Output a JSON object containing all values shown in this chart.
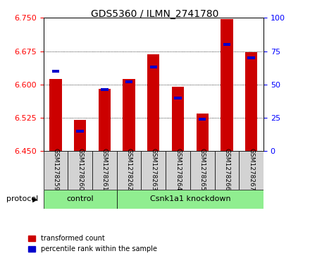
{
  "title": "GDS5360 / ILMN_2741780",
  "samples": [
    "GSM1278259",
    "GSM1278260",
    "GSM1278261",
    "GSM1278262",
    "GSM1278263",
    "GSM1278264",
    "GSM1278265",
    "GSM1278266",
    "GSM1278267"
  ],
  "transformed_count": [
    6.613,
    6.52,
    6.59,
    6.613,
    6.668,
    6.595,
    6.535,
    6.748,
    6.672
  ],
  "percentile_rank": [
    60,
    15,
    46,
    52,
    63,
    40,
    24,
    80,
    70
  ],
  "ylim_left": [
    6.45,
    6.75
  ],
  "ylim_right": [
    0,
    100
  ],
  "yticks_left": [
    6.45,
    6.525,
    6.6,
    6.675,
    6.75
  ],
  "yticks_right": [
    0,
    25,
    50,
    75,
    100
  ],
  "bar_color": "#cc0000",
  "percentile_color": "#0000cc",
  "control_label": "control",
  "knockdown_label": "Csnk1a1 knockdown",
  "protocol_label": "protocol",
  "legend_transformed": "transformed count",
  "legend_percentile": "percentile rank within the sample",
  "group_color": "#90ee90",
  "tick_bg": "#d3d3d3",
  "bar_width": 0.5,
  "baseline": 6.45,
  "percentile_bar_height": 0.006,
  "percentile_bar_width": 0.3
}
